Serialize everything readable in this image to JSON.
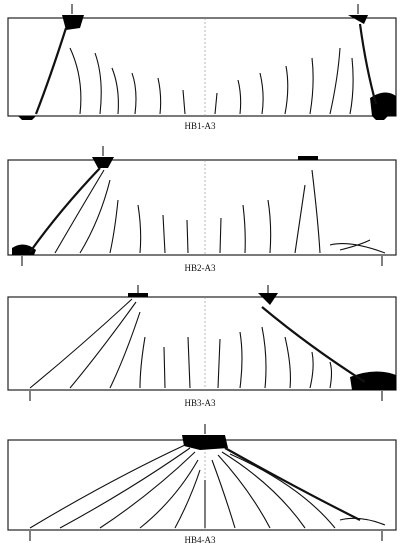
{
  "panels": [
    {
      "label": "HB1-A3"
    },
    {
      "label": "HB2-A3"
    },
    {
      "label": "HB3-A3"
    },
    {
      "label": "HB4-A3"
    }
  ]
}
